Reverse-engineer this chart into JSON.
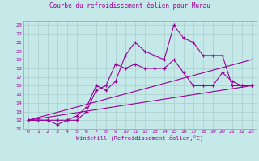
{
  "title": "Courbe du refroidissement éolien pour Murau",
  "xlabel": "Windchill (Refroidissement éolien,°C)",
  "background_color": "#c5e8e8",
  "line_color": "#990099",
  "grid_color": "#aacccc",
  "xlim": [
    -0.5,
    23.5
  ],
  "ylim": [
    11,
    23.5
  ],
  "xticks": [
    0,
    1,
    2,
    3,
    4,
    5,
    6,
    7,
    8,
    9,
    10,
    11,
    12,
    13,
    14,
    15,
    16,
    17,
    18,
    19,
    20,
    21,
    22,
    23
  ],
  "yticks": [
    11,
    12,
    13,
    14,
    15,
    16,
    17,
    18,
    19,
    20,
    21,
    22,
    23
  ],
  "series_with_markers": [
    {
      "x": [
        0,
        1,
        2,
        3,
        4,
        5,
        6,
        7,
        8,
        9,
        10,
        11,
        12,
        13,
        14,
        15,
        16,
        17,
        18,
        19,
        20,
        21,
        22,
        23
      ],
      "y": [
        12,
        12,
        12,
        12,
        12,
        12.5,
        13.5,
        16,
        15.5,
        16.5,
        19.5,
        21,
        20,
        19.5,
        19,
        23,
        21.5,
        21,
        19.5,
        19.5,
        19.5,
        16,
        16,
        16
      ]
    },
    {
      "x": [
        0,
        1,
        2,
        3,
        4,
        5,
        6,
        7,
        8,
        9,
        10,
        11,
        12,
        13,
        14,
        15,
        16,
        17,
        18,
        19,
        20,
        21,
        22,
        23
      ],
      "y": [
        12,
        12,
        12,
        11.5,
        12,
        12,
        13,
        15.5,
        16,
        18.5,
        18,
        18.5,
        18,
        18,
        18,
        19,
        17.5,
        16,
        16,
        16,
        17.5,
        16.5,
        16,
        16
      ]
    }
  ],
  "series_straight": [
    {
      "x": [
        0,
        23
      ],
      "y": [
        12,
        19.0
      ]
    },
    {
      "x": [
        0,
        23
      ],
      "y": [
        12,
        16.0
      ]
    }
  ]
}
